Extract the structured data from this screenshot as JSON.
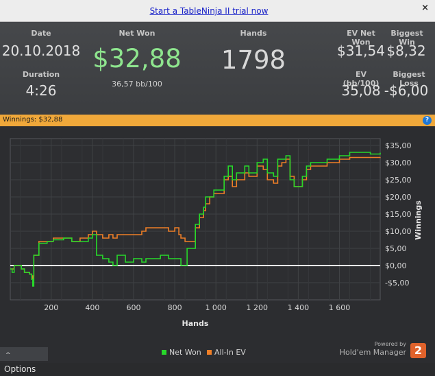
{
  "banner": {
    "trial_link": "Start a TableNinja II trial now",
    "close_label": "×"
  },
  "stats": {
    "date_label": "Date",
    "date": "20.10.2018",
    "duration_label": "Duration",
    "duration": "4:26",
    "netwon_label": "Net Won",
    "netwon": "$32,88",
    "bb100": "36,57 bb/100",
    "hands_label": "Hands",
    "hands": "1798",
    "evnet_label": "EV Net Won",
    "evnet": "$31,54",
    "bigwin_label": "Biggest Win",
    "bigwin": "$8,32",
    "evbb_label": "EV (bb/100)",
    "evbb": "35,08",
    "bigloss_label": "Biggest Loss",
    "bigloss": "-$6,00"
  },
  "winnings_bar": {
    "text": "Winnings: $32,88",
    "help": "?"
  },
  "footer": {
    "options": "Options",
    "powered": "Powered by",
    "brand": "Hold'em Manager",
    "logo": "2"
  },
  "chart_data": {
    "type": "line",
    "xlabel": "Hands",
    "ylabel": "Winnings",
    "xlim": [
      1,
      1798
    ],
    "ylim": [
      -10,
      37
    ],
    "x_ticks": [
      200,
      400,
      600,
      800,
      1000,
      1200,
      1400,
      1600
    ],
    "x_tick_labels": [
      "200",
      "400",
      "600",
      "800",
      "1 000",
      "1 200",
      "1 400",
      "1 600"
    ],
    "y_ticks": [
      -5,
      0,
      5,
      10,
      15,
      20,
      25,
      30,
      35
    ],
    "y_tick_labels": [
      "-$5,00",
      "$0,00",
      "$5,00",
      "$10,00",
      "$15,00",
      "$20,00",
      "$25,00",
      "$30,00",
      "$35,00"
    ],
    "grid": true,
    "legend": "bottom",
    "series": [
      {
        "name": "Net Won",
        "color": "#27d82a",
        "points": [
          [
            1,
            -1
          ],
          [
            10,
            -2
          ],
          [
            20,
            0
          ],
          [
            40,
            0
          ],
          [
            55,
            -1
          ],
          [
            70,
            -2
          ],
          [
            85,
            -2
          ],
          [
            95,
            -2.5
          ],
          [
            105,
            -4
          ],
          [
            110,
            -6
          ],
          [
            115,
            3
          ],
          [
            130,
            3
          ],
          [
            140,
            6.5
          ],
          [
            180,
            7
          ],
          [
            210,
            7.5
          ],
          [
            260,
            8
          ],
          [
            300,
            7
          ],
          [
            340,
            7
          ],
          [
            380,
            8
          ],
          [
            400,
            9
          ],
          [
            420,
            3
          ],
          [
            450,
            2
          ],
          [
            480,
            1
          ],
          [
            500,
            0
          ],
          [
            520,
            3
          ],
          [
            560,
            1
          ],
          [
            600,
            2
          ],
          [
            640,
            1
          ],
          [
            660,
            2
          ],
          [
            700,
            2
          ],
          [
            730,
            3
          ],
          [
            770,
            2
          ],
          [
            800,
            2
          ],
          [
            820,
            2
          ],
          [
            830,
            0
          ],
          [
            850,
            0
          ],
          [
            860,
            5
          ],
          [
            890,
            5
          ],
          [
            900,
            12
          ],
          [
            920,
            15
          ],
          [
            940,
            17
          ],
          [
            950,
            20
          ],
          [
            970,
            20
          ],
          [
            990,
            22
          ],
          [
            1040,
            26
          ],
          [
            1060,
            29
          ],
          [
            1080,
            25
          ],
          [
            1100,
            27
          ],
          [
            1140,
            29
          ],
          [
            1160,
            27
          ],
          [
            1200,
            30
          ],
          [
            1230,
            31
          ],
          [
            1250,
            27
          ],
          [
            1280,
            26
          ],
          [
            1300,
            31
          ],
          [
            1320,
            31
          ],
          [
            1340,
            32
          ],
          [
            1360,
            25
          ],
          [
            1380,
            23
          ],
          [
            1400,
            23
          ],
          [
            1420,
            26
          ],
          [
            1440,
            29
          ],
          [
            1460,
            30
          ],
          [
            1500,
            30
          ],
          [
            1540,
            31
          ],
          [
            1600,
            32
          ],
          [
            1650,
            33
          ],
          [
            1700,
            33
          ],
          [
            1750,
            32.5
          ],
          [
            1798,
            32.88
          ]
        ]
      },
      {
        "name": "All-In EV",
        "color": "#ef7f27",
        "points": [
          [
            1,
            -1
          ],
          [
            10,
            -1
          ],
          [
            20,
            0
          ],
          [
            40,
            0
          ],
          [
            55,
            -1
          ],
          [
            70,
            -2
          ],
          [
            85,
            -2
          ],
          [
            95,
            -2.5
          ],
          [
            105,
            -4
          ],
          [
            110,
            -3
          ],
          [
            115,
            3
          ],
          [
            130,
            3
          ],
          [
            140,
            7
          ],
          [
            180,
            7
          ],
          [
            210,
            8
          ],
          [
            260,
            8
          ],
          [
            300,
            7
          ],
          [
            340,
            8
          ],
          [
            380,
            9
          ],
          [
            400,
            10
          ],
          [
            420,
            9
          ],
          [
            450,
            8
          ],
          [
            480,
            9
          ],
          [
            500,
            8
          ],
          [
            520,
            9
          ],
          [
            560,
            9
          ],
          [
            600,
            9
          ],
          [
            640,
            10
          ],
          [
            660,
            11
          ],
          [
            700,
            11
          ],
          [
            730,
            11
          ],
          [
            770,
            10
          ],
          [
            800,
            11
          ],
          [
            820,
            9
          ],
          [
            830,
            8
          ],
          [
            850,
            7
          ],
          [
            860,
            7
          ],
          [
            890,
            7
          ],
          [
            900,
            11
          ],
          [
            920,
            14
          ],
          [
            940,
            16
          ],
          [
            950,
            18
          ],
          [
            970,
            20
          ],
          [
            990,
            21
          ],
          [
            1040,
            25
          ],
          [
            1060,
            26
          ],
          [
            1080,
            23
          ],
          [
            1100,
            25
          ],
          [
            1140,
            27
          ],
          [
            1160,
            26
          ],
          [
            1200,
            29
          ],
          [
            1230,
            28
          ],
          [
            1250,
            25
          ],
          [
            1280,
            24
          ],
          [
            1300,
            29
          ],
          [
            1320,
            30
          ],
          [
            1340,
            31
          ],
          [
            1360,
            26
          ],
          [
            1380,
            23
          ],
          [
            1400,
            23
          ],
          [
            1420,
            25
          ],
          [
            1440,
            28
          ],
          [
            1460,
            29
          ],
          [
            1500,
            29
          ],
          [
            1540,
            30
          ],
          [
            1600,
            31
          ],
          [
            1650,
            31.5
          ],
          [
            1700,
            31.5
          ],
          [
            1750,
            31.5
          ],
          [
            1798,
            31.54
          ]
        ]
      }
    ]
  }
}
